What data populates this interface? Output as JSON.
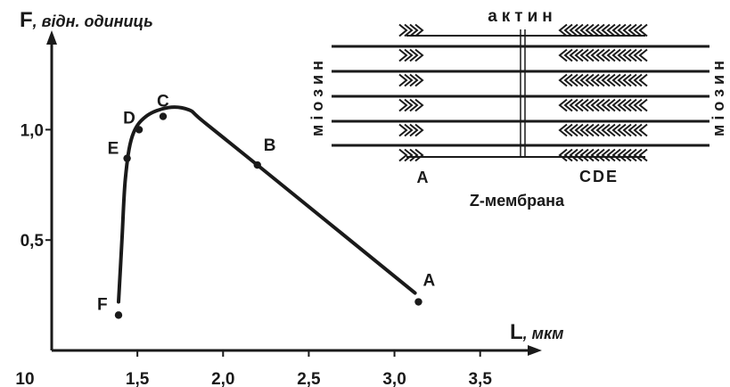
{
  "chart_data": {
    "type": "line",
    "title": "",
    "ylabel": {
      "symbol": "F",
      "rest": ", відн. одиниць"
    },
    "xlabel": {
      "symbol": "L",
      "rest": ", мкм"
    },
    "x_ticks": [
      "10",
      "1,5",
      "2,0",
      "2,5",
      "3,0",
      "3,5"
    ],
    "y_ticks": [
      "0,5",
      "1,0"
    ],
    "xlim": [
      1.0,
      3.85
    ],
    "ylim": [
      0.0,
      1.45
    ],
    "grid": false,
    "curve": [
      {
        "x": 1.39,
        "y": 0.22
      },
      {
        "x": 1.41,
        "y": 0.5
      },
      {
        "x": 1.43,
        "y": 0.78
      },
      {
        "x": 1.47,
        "y": 0.97
      },
      {
        "x": 1.55,
        "y": 1.06
      },
      {
        "x": 1.68,
        "y": 1.1
      },
      {
        "x": 1.8,
        "y": 1.09
      },
      {
        "x": 1.88,
        "y": 1.04
      },
      {
        "x": 2.2,
        "y": 0.84
      },
      {
        "x": 3.12,
        "y": 0.26
      }
    ],
    "points": [
      {
        "label": "F",
        "x": 1.39,
        "y": 0.16
      },
      {
        "label": "E",
        "x": 1.44,
        "y": 0.87
      },
      {
        "label": "D",
        "x": 1.51,
        "y": 1.0
      },
      {
        "label": "C",
        "x": 1.65,
        "y": 1.06
      },
      {
        "label": "B",
        "x": 2.2,
        "y": 0.84
      },
      {
        "label": "A",
        "x": 3.14,
        "y": 0.22
      }
    ]
  },
  "diagram": {
    "actin_label": "актин",
    "myosin_label": "міозин",
    "z_label": "Z-мембрана",
    "pos_a": "A",
    "pos_cde": "CDE"
  }
}
